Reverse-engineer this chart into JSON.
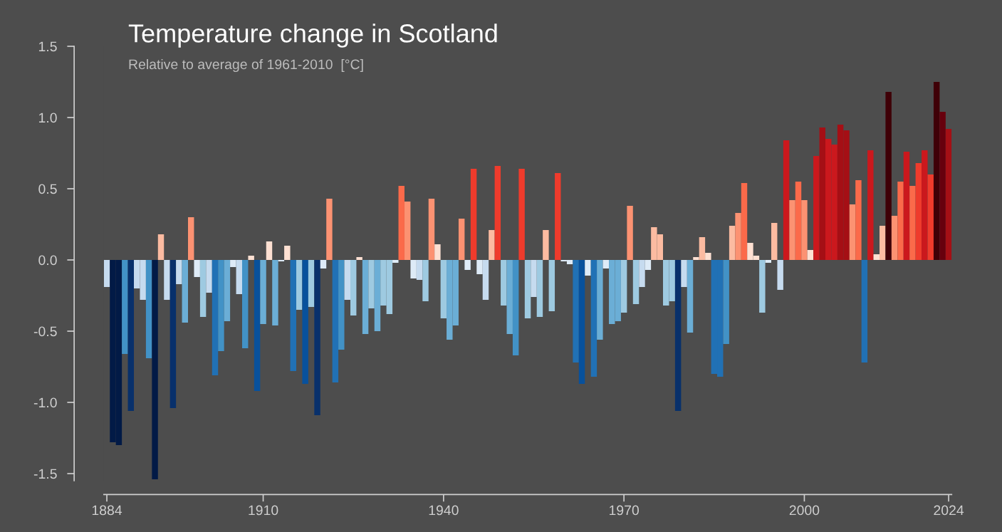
{
  "chart_data": {
    "type": "bar",
    "title": "Temperature change in Scotland",
    "subtitle": "Relative to average of 1961-2010  [°C]",
    "x": [
      1884,
      1885,
      1886,
      1887,
      1888,
      1889,
      1890,
      1891,
      1892,
      1893,
      1894,
      1895,
      1896,
      1897,
      1898,
      1899,
      1900,
      1901,
      1902,
      1903,
      1904,
      1905,
      1906,
      1907,
      1908,
      1909,
      1910,
      1911,
      1912,
      1913,
      1914,
      1915,
      1916,
      1917,
      1918,
      1919,
      1920,
      1921,
      1922,
      1923,
      1924,
      1925,
      1926,
      1927,
      1928,
      1929,
      1930,
      1931,
      1932,
      1933,
      1934,
      1935,
      1936,
      1937,
      1938,
      1939,
      1940,
      1941,
      1942,
      1943,
      1944,
      1945,
      1946,
      1947,
      1948,
      1949,
      1950,
      1951,
      1952,
      1953,
      1954,
      1955,
      1956,
      1957,
      1958,
      1959,
      1960,
      1961,
      1962,
      1963,
      1964,
      1965,
      1966,
      1967,
      1968,
      1969,
      1970,
      1971,
      1972,
      1973,
      1974,
      1975,
      1976,
      1977,
      1978,
      1979,
      1980,
      1981,
      1982,
      1983,
      1984,
      1985,
      1986,
      1987,
      1988,
      1989,
      1990,
      1991,
      1992,
      1993,
      1994,
      1995,
      1996,
      1997,
      1998,
      1999,
      2000,
      2001,
      2002,
      2003,
      2004,
      2005,
      2006,
      2007,
      2008,
      2009,
      2010,
      2011,
      2012,
      2013,
      2014,
      2015,
      2016,
      2017,
      2018,
      2019,
      2020,
      2021,
      2022,
      2023,
      2024
    ],
    "values": [
      -0.19,
      -1.28,
      -1.3,
      -0.66,
      -1.06,
      -0.2,
      -0.28,
      -0.69,
      -1.54,
      0.18,
      -0.28,
      -1.04,
      -0.17,
      -0.44,
      0.3,
      -0.12,
      -0.4,
      -0.23,
      -0.81,
      -0.64,
      -0.43,
      -0.05,
      -0.24,
      -0.62,
      0.03,
      -0.92,
      -0.45,
      0.13,
      -0.46,
      -0.01,
      0.1,
      -0.78,
      -0.35,
      -0.87,
      -0.33,
      -1.09,
      -0.06,
      0.43,
      -0.86,
      -0.63,
      -0.28,
      -0.39,
      0.02,
      -0.52,
      -0.34,
      -0.5,
      -0.32,
      -0.38,
      -0.02,
      0.52,
      0.41,
      -0.13,
      -0.14,
      -0.29,
      0.43,
      0.11,
      -0.41,
      -0.56,
      -0.46,
      0.29,
      -0.07,
      0.64,
      -0.1,
      -0.28,
      0.21,
      0.66,
      -0.32,
      -0.52,
      -0.67,
      0.64,
      -0.41,
      -0.26,
      -0.4,
      0.21,
      -0.36,
      0.61,
      -0.01,
      -0.03,
      -0.72,
      -0.87,
      -0.11,
      -0.82,
      -0.56,
      -0.06,
      -0.45,
      -0.43,
      -0.37,
      0.38,
      -0.31,
      -0.19,
      -0.07,
      0.23,
      0.18,
      -0.32,
      -0.29,
      -1.06,
      -0.19,
      -0.51,
      0.02,
      0.16,
      0.05,
      -0.8,
      -0.82,
      -0.59,
      0.24,
      0.33,
      0.54,
      0.12,
      0.03,
      -0.37,
      -0.02,
      0.26,
      -0.21,
      0.84,
      0.42,
      0.55,
      0.42,
      0.07,
      0.73,
      0.93,
      0.85,
      0.81,
      0.95,
      0.91,
      0.39,
      0.56,
      -0.72,
      0.77,
      0.04,
      0.24,
      1.18,
      0.31,
      0.55,
      0.76,
      0.52,
      0.68,
      0.77,
      0.6,
      1.25,
      1.04,
      0.92
    ],
    "colors": [
      "#c6dbef",
      "#021a46",
      "#021a46",
      "#4292c6",
      "#08306b",
      "#c6dbef",
      "#c6dbef",
      "#4292c6",
      "#021a46",
      "#fcbba1",
      "#c6dbef",
      "#08306b",
      "#c6dbef",
      "#6baed6",
      "#fc9272",
      "#deebf7",
      "#9ecae1",
      "#c6dbef",
      "#2171b5",
      "#4292c6",
      "#6baed6",
      "#deebf7",
      "#c6dbef",
      "#4292c6",
      "#fee0d2",
      "#08519c",
      "#6baed6",
      "#fee0d2",
      "#6baed6",
      "#deebf7",
      "#fee0d2",
      "#2171b5",
      "#9ecae1",
      "#08519c",
      "#9ecae1",
      "#08306b",
      "#deebf7",
      "#fc9272",
      "#2171b5",
      "#4292c6",
      "#c6dbef",
      "#9ecae1",
      "#fee0d2",
      "#6baed6",
      "#9ecae1",
      "#6baed6",
      "#9ecae1",
      "#9ecae1",
      "#deebf7",
      "#fb6a4a",
      "#fc9272",
      "#deebf7",
      "#c6dbef",
      "#9ecae1",
      "#fc9272",
      "#fee0d2",
      "#9ecae1",
      "#6baed6",
      "#6baed6",
      "#fc9272",
      "#deebf7",
      "#ef3b2c",
      "#deebf7",
      "#c6dbef",
      "#fcbba1",
      "#ef3b2c",
      "#9ecae1",
      "#6baed6",
      "#4292c6",
      "#ef3b2c",
      "#9ecae1",
      "#c6dbef",
      "#9ecae1",
      "#fcbba1",
      "#9ecae1",
      "#ef3b2c",
      "#deebf7",
      "#deebf7",
      "#2171b5",
      "#08519c",
      "#deebf7",
      "#2171b5",
      "#6baed6",
      "#deebf7",
      "#6baed6",
      "#6baed6",
      "#9ecae1",
      "#fc9272",
      "#9ecae1",
      "#c6dbef",
      "#deebf7",
      "#fcbba1",
      "#fcbba1",
      "#9ecae1",
      "#9ecae1",
      "#08306b",
      "#c6dbef",
      "#6baed6",
      "#fee0d2",
      "#fcbba1",
      "#fee0d2",
      "#2171b5",
      "#2171b5",
      "#4292c6",
      "#fcbba1",
      "#fc9272",
      "#fb6a4a",
      "#fee0d2",
      "#fee0d2",
      "#9ecae1",
      "#deebf7",
      "#fcbba1",
      "#c6dbef",
      "#cb181d",
      "#fc9272",
      "#fb6a4a",
      "#fc9272",
      "#fee0d2",
      "#cb181d",
      "#a50f15",
      "#cb181d",
      "#cb181d",
      "#a50f15",
      "#a50f15",
      "#fc9272",
      "#fb6a4a",
      "#2171b5",
      "#cb181d",
      "#fee0d2",
      "#fcbba1",
      "#3f0007",
      "#fc9272",
      "#fb6a4a",
      "#cb181d",
      "#fb6a4a",
      "#ef3b2c",
      "#cb181d",
      "#ef3b2c",
      "#3f0007",
      "#67000d",
      "#a50f15"
    ],
    "xlim": [
      1883.5,
      2024.5
    ],
    "ylim": [
      -1.55,
      1.5
    ],
    "xticks": [
      1884,
      1910,
      1940,
      1970,
      2000,
      2024
    ],
    "yticks": [
      {
        "value": -1.5,
        "label": "-1.5"
      },
      {
        "value": -1.0,
        "label": "-1.0"
      },
      {
        "value": -0.5,
        "label": "-0.5"
      },
      {
        "value": 0.0,
        "label": "0.0"
      },
      {
        "value": 0.5,
        "label": "0.5"
      },
      {
        "value": 1.0,
        "label": "1.0"
      },
      {
        "value": 1.5,
        "label": "1.5"
      }
    ]
  }
}
